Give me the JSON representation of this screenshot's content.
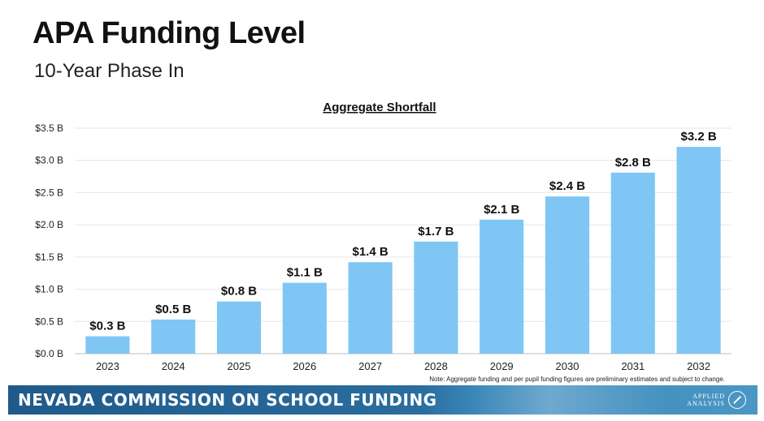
{
  "header": {
    "title": "APA Funding Level",
    "subtitle": "10-Year Phase In"
  },
  "note": "Note: Aggregate funding and per pupil funding figures are preliminary estimates and subject to change.",
  "footer": {
    "banner_text": "NEVADA COMMISSION ON SCHOOL FUNDING",
    "logo_line1": "APPLIED",
    "logo_line2": "ANALYSIS"
  },
  "colors": {
    "bar": "#7fc6f5",
    "grid": "#e6e6e6",
    "text": "#222222"
  },
  "chart_data": {
    "type": "bar",
    "title": "Aggregate Shortfall",
    "xlabel": "",
    "ylabel": "",
    "categories": [
      "2023",
      "2024",
      "2025",
      "2026",
      "2027",
      "2028",
      "2029",
      "2030",
      "2031",
      "2032"
    ],
    "values": [
      0.27,
      0.53,
      0.81,
      1.1,
      1.42,
      1.74,
      2.08,
      2.44,
      2.81,
      3.21
    ],
    "data_labels": [
      "$0.3 B",
      "$0.5 B",
      "$0.8 B",
      "$1.1 B",
      "$1.4 B",
      "$1.7 B",
      "$2.1 B",
      "$2.4 B",
      "$2.8 B",
      "$3.2 B"
    ],
    "ylim": [
      0,
      3.5
    ],
    "yticks": [
      0,
      0.5,
      1.0,
      1.5,
      2.0,
      2.5,
      3.0,
      3.5
    ],
    "ytick_labels": [
      "$0.0 B",
      "$0.5 B",
      "$1.0 B",
      "$1.5 B",
      "$2.0 B",
      "$2.5 B",
      "$3.0 B",
      "$3.5 B"
    ],
    "grid": true,
    "legend": "none"
  }
}
